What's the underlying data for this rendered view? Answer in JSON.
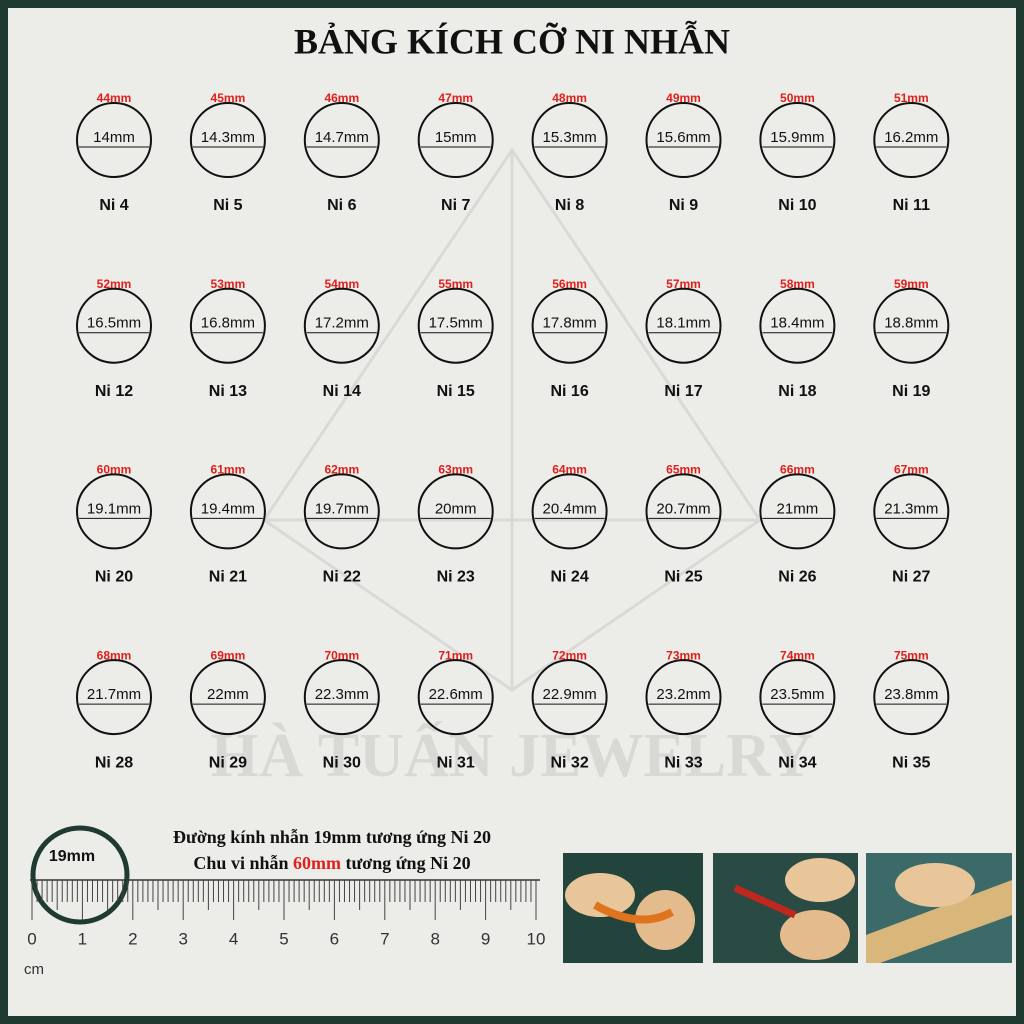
{
  "header": {
    "title": "BẢNG KÍCH CỠ NI NHẪN"
  },
  "watermark": "HÀ TUẤN JEWELRY",
  "items": [
    {
      "circumference": "44mm",
      "diameter": "14mm",
      "size": "Ni 4"
    },
    {
      "circumference": "45mm",
      "diameter": "14.3mm",
      "size": "Ni 5"
    },
    {
      "circumference": "46mm",
      "diameter": "14.7mm",
      "size": "Ni 6"
    },
    {
      "circumference": "47mm",
      "diameter": "15mm",
      "size": "Ni 7"
    },
    {
      "circumference": "48mm",
      "diameter": "15.3mm",
      "size": "Ni 8"
    },
    {
      "circumference": "49mm",
      "diameter": "15.6mm",
      "size": "Ni 9"
    },
    {
      "circumference": "50mm",
      "diameter": "15.9mm",
      "size": "Ni 10"
    },
    {
      "circumference": "51mm",
      "diameter": "16.2mm",
      "size": "Ni 11"
    },
    {
      "circumference": "52mm",
      "diameter": "16.5mm",
      "size": "Ni 12"
    },
    {
      "circumference": "53mm",
      "diameter": "16.8mm",
      "size": "Ni 13"
    },
    {
      "circumference": "54mm",
      "diameter": "17.2mm",
      "size": "Ni 14"
    },
    {
      "circumference": "55mm",
      "diameter": "17.5mm",
      "size": "Ni 15"
    },
    {
      "circumference": "56mm",
      "diameter": "17.8mm",
      "size": "Ni 16"
    },
    {
      "circumference": "57mm",
      "diameter": "18.1mm",
      "size": "Ni 17"
    },
    {
      "circumference": "58mm",
      "diameter": "18.4mm",
      "size": "Ni 18"
    },
    {
      "circumference": "59mm",
      "diameter": "18.8mm",
      "size": "Ni 19"
    },
    {
      "circumference": "60mm",
      "diameter": "19.1mm",
      "size": "Ni 20"
    },
    {
      "circumference": "61mm",
      "diameter": "19.4mm",
      "size": "Ni 21"
    },
    {
      "circumference": "62mm",
      "diameter": "19.7mm",
      "size": "Ni 22"
    },
    {
      "circumference": "63mm",
      "diameter": "20mm",
      "size": "Ni 23"
    },
    {
      "circumference": "64mm",
      "diameter": "20.4mm",
      "size": "Ni 24"
    },
    {
      "circumference": "65mm",
      "diameter": "20.7mm",
      "size": "Ni 25"
    },
    {
      "circumference": "66mm",
      "diameter": "21mm",
      "size": "Ni 26"
    },
    {
      "circumference": "67mm",
      "diameter": "21.3mm",
      "size": "Ni 27"
    },
    {
      "circumference": "68mm",
      "diameter": "21.7mm",
      "size": "Ni 28"
    },
    {
      "circumference": "69mm",
      "diameter": "22mm",
      "size": "Ni 29"
    },
    {
      "circumference": "70mm",
      "diameter": "22.3mm",
      "size": "Ni 30"
    },
    {
      "circumference": "71mm",
      "diameter": "22.6mm",
      "size": "Ni 31"
    },
    {
      "circumference": "72mm",
      "diameter": "22.9mm",
      "size": "Ni 32"
    },
    {
      "circumference": "73mm",
      "diameter": "23.2mm",
      "size": "Ni 33"
    },
    {
      "circumference": "74mm",
      "diameter": "23.5mm",
      "size": "Ni 34"
    },
    {
      "circumference": "75mm",
      "diameter": "23.8mm",
      "size": "Ni 35"
    }
  ],
  "guide": {
    "sample_diameter": "19mm",
    "line1": "Đường kính nhẫn 19mm tương ứng Ni 20",
    "line2_start": "Chu vi nhẫn ",
    "line2_highlight": "60mm",
    "line2_end": " tương ứng Ni 20",
    "ruler_labels": [
      "0",
      "1",
      "2",
      "3",
      "4",
      "5",
      "6",
      "7",
      "8",
      "9",
      "10"
    ],
    "ruler_unit": "cm"
  }
}
